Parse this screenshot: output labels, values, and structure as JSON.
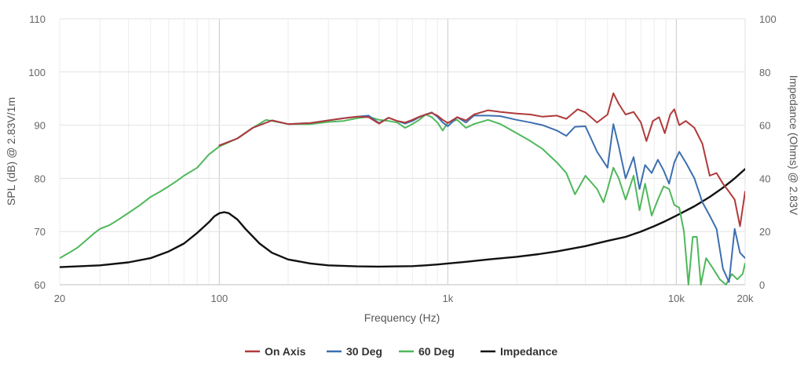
{
  "chart_data": {
    "type": "line",
    "x_scale": "log",
    "xlabel": "Frequency (Hz)",
    "ylabel_left": "SPL (dB) @ 2.83V/1m",
    "ylabel_right": "Impedance (Ohms) @ 2.83V",
    "xlim": [
      20,
      20000
    ],
    "ylim_left": [
      60,
      110
    ],
    "ylim_right": [
      0,
      100
    ],
    "x_tick_labels": [
      "20",
      "100",
      "1k",
      "10k",
      "20k"
    ],
    "y_left_tick_labels": [
      "60",
      "70",
      "80",
      "90",
      "100",
      "110"
    ],
    "y_right_tick_labels": [
      "0",
      "20",
      "40",
      "60",
      "80",
      "100"
    ],
    "grid": true,
    "legend_position": "bottom-center",
    "colors": {
      "on_axis": "#b03a3a",
      "deg30": "#3d6fb0",
      "deg60": "#4fb85c",
      "impedance": "#111111"
    },
    "series": [
      {
        "name": "On Axis",
        "axis": "left",
        "color": "#b03a3a",
        "points": [
          [
            100,
            86.2
          ],
          [
            120,
            87.5
          ],
          [
            140,
            89.5
          ],
          [
            170,
            90.9
          ],
          [
            200,
            90.2
          ],
          [
            250,
            90.4
          ],
          [
            300,
            90.9
          ],
          [
            350,
            91.3
          ],
          [
            400,
            91.6
          ],
          [
            450,
            91.5
          ],
          [
            500,
            90.3
          ],
          [
            550,
            91.4
          ],
          [
            600,
            90.8
          ],
          [
            650,
            90.5
          ],
          [
            700,
            91.0
          ],
          [
            750,
            91.6
          ],
          [
            800,
            92.0
          ],
          [
            850,
            92.3
          ],
          [
            900,
            91.8
          ],
          [
            950,
            91.0
          ],
          [
            1000,
            90.4
          ],
          [
            1100,
            91.5
          ],
          [
            1200,
            90.9
          ],
          [
            1300,
            92.0
          ],
          [
            1500,
            92.8
          ],
          [
            1700,
            92.5
          ],
          [
            2000,
            92.2
          ],
          [
            2300,
            92.0
          ],
          [
            2600,
            91.6
          ],
          [
            3000,
            91.8
          ],
          [
            3300,
            91.2
          ],
          [
            3700,
            93.0
          ],
          [
            4000,
            92.4
          ],
          [
            4500,
            90.5
          ],
          [
            5000,
            92.0
          ],
          [
            5300,
            96.0
          ],
          [
            5600,
            94.0
          ],
          [
            6000,
            92.0
          ],
          [
            6500,
            92.5
          ],
          [
            7000,
            90.5
          ],
          [
            7400,
            87.0
          ],
          [
            7900,
            90.8
          ],
          [
            8400,
            91.5
          ],
          [
            8900,
            88.5
          ],
          [
            9400,
            92.0
          ],
          [
            9800,
            93.0
          ],
          [
            10300,
            90.0
          ],
          [
            11000,
            90.8
          ],
          [
            12000,
            89.5
          ],
          [
            13000,
            86.5
          ],
          [
            14000,
            80.5
          ],
          [
            15000,
            81.0
          ],
          [
            16000,
            79.0
          ],
          [
            17000,
            77.5
          ],
          [
            18000,
            76.0
          ],
          [
            19000,
            71.0
          ],
          [
            20000,
            77.5
          ]
        ]
      },
      {
        "name": "30 Deg",
        "axis": "left",
        "color": "#3d6fb0",
        "points": [
          [
            100,
            86.2
          ],
          [
            120,
            87.5
          ],
          [
            140,
            89.5
          ],
          [
            170,
            90.9
          ],
          [
            200,
            90.2
          ],
          [
            250,
            90.4
          ],
          [
            300,
            90.9
          ],
          [
            350,
            91.3
          ],
          [
            400,
            91.6
          ],
          [
            450,
            91.8
          ],
          [
            500,
            90.4
          ],
          [
            550,
            91.4
          ],
          [
            600,
            90.8
          ],
          [
            650,
            90.3
          ],
          [
            700,
            90.8
          ],
          [
            750,
            91.5
          ],
          [
            800,
            92.0
          ],
          [
            850,
            92.4
          ],
          [
            900,
            91.6
          ],
          [
            950,
            90.5
          ],
          [
            1000,
            89.8
          ],
          [
            1100,
            91.5
          ],
          [
            1200,
            90.5
          ],
          [
            1300,
            91.8
          ],
          [
            1500,
            91.8
          ],
          [
            1700,
            91.7
          ],
          [
            2000,
            91.0
          ],
          [
            2300,
            90.5
          ],
          [
            2600,
            90.0
          ],
          [
            3000,
            89.0
          ],
          [
            3300,
            88.0
          ],
          [
            3600,
            89.7
          ],
          [
            4000,
            89.8
          ],
          [
            4500,
            85.0
          ],
          [
            5000,
            82.0
          ],
          [
            5300,
            90.2
          ],
          [
            5600,
            86.0
          ],
          [
            6000,
            80.0
          ],
          [
            6500,
            84.0
          ],
          [
            6900,
            78.0
          ],
          [
            7300,
            82.5
          ],
          [
            7800,
            81.0
          ],
          [
            8300,
            83.5
          ],
          [
            8800,
            81.5
          ],
          [
            9300,
            79.0
          ],
          [
            9800,
            83.0
          ],
          [
            10300,
            85.0
          ],
          [
            11000,
            83.0
          ],
          [
            12000,
            80.0
          ],
          [
            13000,
            75.5
          ],
          [
            14000,
            73.0
          ],
          [
            15000,
            70.5
          ],
          [
            16000,
            63.0
          ],
          [
            17000,
            60.5
          ],
          [
            18000,
            70.5
          ],
          [
            19000,
            66.0
          ],
          [
            20000,
            65.0
          ]
        ]
      },
      {
        "name": "60 Deg",
        "axis": "left",
        "color": "#4fb85c",
        "points": [
          [
            20,
            65.0
          ],
          [
            22,
            66.0
          ],
          [
            24,
            67.0
          ],
          [
            26,
            68.3
          ],
          [
            28,
            69.5
          ],
          [
            30,
            70.5
          ],
          [
            33,
            71.2
          ],
          [
            36,
            72.2
          ],
          [
            40,
            73.5
          ],
          [
            45,
            75.0
          ],
          [
            50,
            76.5
          ],
          [
            55,
            77.5
          ],
          [
            60,
            78.5
          ],
          [
            65,
            79.5
          ],
          [
            70,
            80.5
          ],
          [
            80,
            82.0
          ],
          [
            90,
            84.5
          ],
          [
            100,
            86.0
          ],
          [
            120,
            87.5
          ],
          [
            140,
            89.5
          ],
          [
            160,
            91.0
          ],
          [
            180,
            90.6
          ],
          [
            200,
            90.2
          ],
          [
            250,
            90.2
          ],
          [
            300,
            90.6
          ],
          [
            350,
            90.8
          ],
          [
            400,
            91.3
          ],
          [
            450,
            91.6
          ],
          [
            500,
            91.0
          ],
          [
            550,
            90.8
          ],
          [
            600,
            90.5
          ],
          [
            650,
            89.5
          ],
          [
            700,
            90.2
          ],
          [
            750,
            91.0
          ],
          [
            800,
            92.0
          ],
          [
            850,
            91.5
          ],
          [
            900,
            90.5
          ],
          [
            950,
            89.0
          ],
          [
            1000,
            90.5
          ],
          [
            1100,
            91.0
          ],
          [
            1200,
            89.5
          ],
          [
            1300,
            90.2
          ],
          [
            1500,
            91.0
          ],
          [
            1700,
            90.2
          ],
          [
            2000,
            88.5
          ],
          [
            2300,
            87.0
          ],
          [
            2600,
            85.5
          ],
          [
            3000,
            83.0
          ],
          [
            3300,
            81.0
          ],
          [
            3600,
            77.0
          ],
          [
            4000,
            80.5
          ],
          [
            4500,
            78.0
          ],
          [
            4800,
            75.5
          ],
          [
            5000,
            78.0
          ],
          [
            5300,
            82.0
          ],
          [
            5600,
            80.0
          ],
          [
            6000,
            76.0
          ],
          [
            6500,
            80.5
          ],
          [
            6900,
            74.0
          ],
          [
            7300,
            79.0
          ],
          [
            7800,
            73.0
          ],
          [
            8300,
            76.0
          ],
          [
            8800,
            78.5
          ],
          [
            9300,
            78.0
          ],
          [
            9800,
            75.0
          ],
          [
            10300,
            74.5
          ],
          [
            10800,
            70.0
          ],
          [
            11300,
            60.0
          ],
          [
            11800,
            69.0
          ],
          [
            12300,
            69.0
          ],
          [
            12800,
            60.0
          ],
          [
            13500,
            65.0
          ],
          [
            14500,
            63.0
          ],
          [
            15500,
            61.0
          ],
          [
            16500,
            60.0
          ],
          [
            17500,
            62.0
          ],
          [
            18500,
            61.0
          ],
          [
            19500,
            62.0
          ],
          [
            20000,
            64.0
          ]
        ]
      },
      {
        "name": "Impedance",
        "axis": "right",
        "color": "#111111",
        "points": [
          [
            20,
            6.6
          ],
          [
            30,
            7.3
          ],
          [
            40,
            8.4
          ],
          [
            50,
            10.0
          ],
          [
            60,
            12.5
          ],
          [
            70,
            15.5
          ],
          [
            80,
            19.5
          ],
          [
            90,
            23.5
          ],
          [
            95,
            25.7
          ],
          [
            100,
            26.9
          ],
          [
            105,
            27.3
          ],
          [
            110,
            26.9
          ],
          [
            120,
            24.5
          ],
          [
            130,
            21.0
          ],
          [
            150,
            15.5
          ],
          [
            170,
            12.0
          ],
          [
            200,
            9.5
          ],
          [
            250,
            8.0
          ],
          [
            300,
            7.3
          ],
          [
            400,
            6.9
          ],
          [
            500,
            6.8
          ],
          [
            600,
            6.9
          ],
          [
            700,
            7.0
          ],
          [
            800,
            7.3
          ],
          [
            900,
            7.6
          ],
          [
            1000,
            8.0
          ],
          [
            1200,
            8.6
          ],
          [
            1500,
            9.5
          ],
          [
            2000,
            10.5
          ],
          [
            2500,
            11.5
          ],
          [
            3000,
            12.5
          ],
          [
            4000,
            14.5
          ],
          [
            5000,
            16.5
          ],
          [
            6000,
            18.0
          ],
          [
            7000,
            20.0
          ],
          [
            8000,
            22.0
          ],
          [
            9000,
            24.0
          ],
          [
            10000,
            26.0
          ],
          [
            12000,
            29.5
          ],
          [
            14000,
            33.0
          ],
          [
            16000,
            36.5
          ],
          [
            18000,
            40.0
          ],
          [
            20000,
            43.5
          ]
        ]
      }
    ]
  }
}
